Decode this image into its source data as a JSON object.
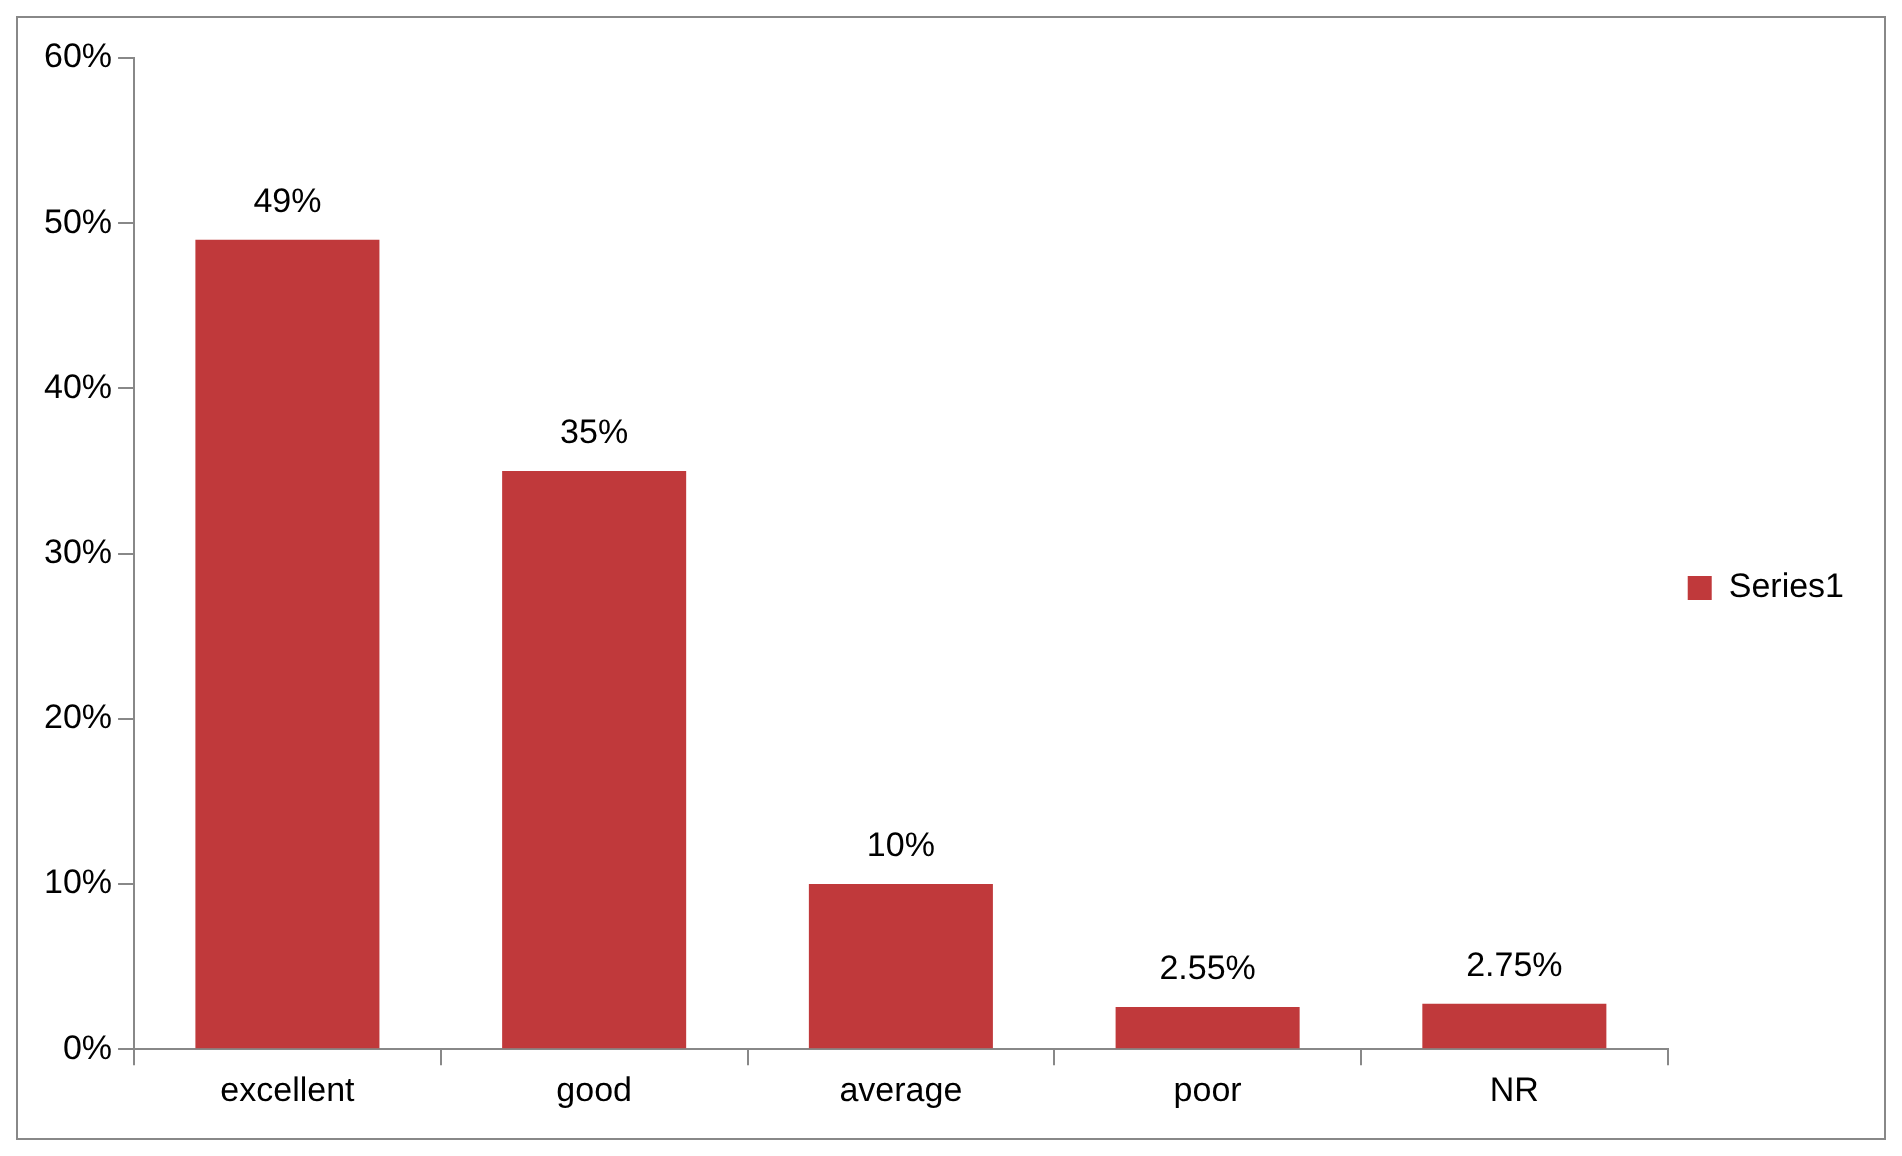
{
  "chart_data": {
    "type": "bar",
    "categories": [
      "excellent",
      "good",
      "average",
      "poor",
      "NR"
    ],
    "series": [
      {
        "name": "Series1",
        "color": "#c0393b",
        "values": [
          49,
          35,
          10,
          2.55,
          2.75
        ],
        "value_labels": [
          "49%",
          "35%",
          "10%",
          "2.55%",
          "2.75%"
        ]
      }
    ],
    "ylim": [
      0,
      60
    ],
    "yticks": [
      {
        "value": 0,
        "label": "0%"
      },
      {
        "value": 10,
        "label": "10%"
      },
      {
        "value": 20,
        "label": "20%"
      },
      {
        "value": 30,
        "label": "30%"
      },
      {
        "value": 40,
        "label": "40%"
      },
      {
        "value": 50,
        "label": "50%"
      },
      {
        "value": 60,
        "label": "60%"
      }
    ],
    "grid": false,
    "legend": "right"
  }
}
